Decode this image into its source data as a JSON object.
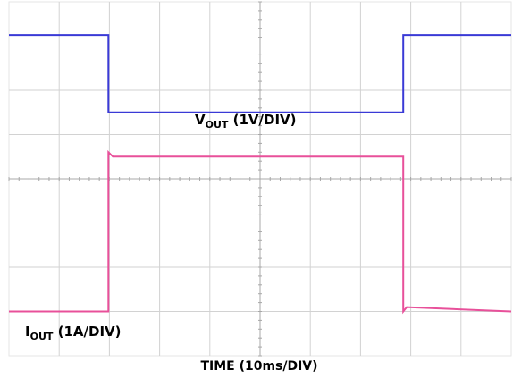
{
  "chart_data": {
    "type": "line",
    "title": "",
    "xlabel": "TIME (10ms/DIV)",
    "ylabel": "",
    "x_divisions": 10,
    "y_divisions": 8,
    "grid": true,
    "series": [
      {
        "name_main": "V",
        "name_sub": "OUT",
        "name_rest": " (1V/DIV)",
        "color": "#3a3ad6",
        "unit_per_div": "1V",
        "points_div": [
          [
            0.0,
            0.75
          ],
          [
            1.98,
            0.75
          ],
          [
            1.98,
            2.5
          ],
          [
            7.85,
            2.5
          ],
          [
            7.85,
            0.75
          ],
          [
            10.0,
            0.75
          ]
        ]
      },
      {
        "name_main": "I",
        "name_sub": "OUT",
        "name_rest": " (1A/DIV)",
        "color": "#e8509a",
        "unit_per_div": "1A",
        "points_div": [
          [
            0.0,
            7.0
          ],
          [
            1.98,
            7.0
          ],
          [
            1.98,
            3.4
          ],
          [
            2.07,
            3.5
          ],
          [
            7.85,
            3.5
          ],
          [
            7.85,
            7.0
          ],
          [
            7.92,
            6.9
          ],
          [
            10.0,
            7.0
          ]
        ]
      }
    ]
  }
}
